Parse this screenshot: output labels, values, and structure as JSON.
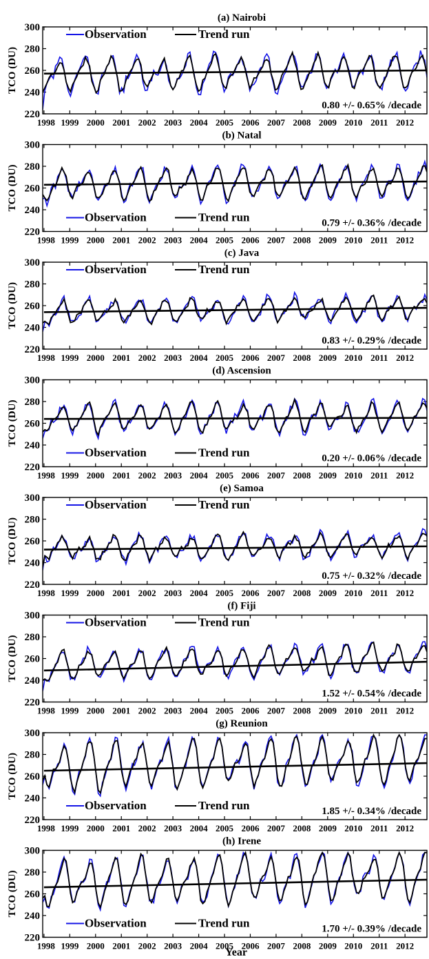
{
  "figure": {
    "ylabel": "TCO (DU)",
    "xlabel": "Year",
    "legend": {
      "observation": "Observation",
      "trend": "Trend run"
    },
    "colors": {
      "observation": "#1414e6",
      "trend": "#000000",
      "axis": "#000000"
    }
  },
  "chart_data": [
    {
      "type": "line",
      "title": "(a) Nairobi",
      "ylabel": "TCO (DU)",
      "ylim": [
        220,
        300
      ],
      "yticks": [
        220,
        240,
        260,
        280,
        300
      ],
      "xticks": [
        "1998",
        "1999",
        "2000",
        "2001",
        "2002",
        "2003",
        "2004",
        "2005",
        "2006",
        "2007",
        "2008",
        "2009",
        "2010",
        "2011",
        "2012"
      ],
      "legend_position": "top-left",
      "annotation": "0.80 +/- 0.65% /decade",
      "annotation_position": "bottom-right",
      "series": [
        {
          "name": "Observation",
          "mean": 256,
          "amplitude": 13,
          "phase": 0.62,
          "noise": 5,
          "start": 224
        },
        {
          "name": "Trend run",
          "mean": 256,
          "amplitude": 12,
          "phase": 0.62,
          "noise": 2,
          "start": 240
        }
      ],
      "trend_line": {
        "y_start": 257,
        "y_end": 260
      }
    },
    {
      "type": "line",
      "title": "(b) Natal",
      "ylabel": "TCO (DU)",
      "ylim": [
        220,
        300
      ],
      "yticks": [
        220,
        240,
        260,
        280,
        300
      ],
      "xticks": [
        "1998",
        "1999",
        "2000",
        "2001",
        "2002",
        "2003",
        "2004",
        "2005",
        "2006",
        "2007",
        "2008",
        "2009",
        "2010",
        "2011",
        "2012"
      ],
      "legend_position": "bottom-left",
      "annotation": "0.79 +/- 0.36% /decade",
      "annotation_position": "bottom-right",
      "series": [
        {
          "name": "Observation",
          "mean": 263,
          "amplitude": 12,
          "phase": 0.72,
          "noise": 4,
          "start": 250
        },
        {
          "name": "Trend run",
          "mean": 263,
          "amplitude": 11,
          "phase": 0.72,
          "noise": 2,
          "start": 254
        }
      ],
      "trend_line": {
        "y_start": 263,
        "y_end": 266
      }
    },
    {
      "type": "line",
      "title": "(c) Java",
      "ylabel": "TCO (DU)",
      "ylim": [
        220,
        300
      ],
      "yticks": [
        220,
        240,
        260,
        280,
        300
      ],
      "xticks": [
        "1998",
        "1999",
        "2000",
        "2001",
        "2002",
        "2003",
        "2004",
        "2005",
        "2006",
        "2007",
        "2008",
        "2009",
        "2010",
        "2011",
        "2012"
      ],
      "legend_position": "top-left",
      "annotation": "0.83 +/- 0.29% /decade",
      "annotation_position": "bottom-right",
      "series": [
        {
          "name": "Observation",
          "mean": 254,
          "amplitude": 9,
          "phase": 0.72,
          "noise": 4,
          "start": 236
        },
        {
          "name": "Trend run",
          "mean": 254,
          "amplitude": 8,
          "phase": 0.72,
          "noise": 2,
          "start": 244
        }
      ],
      "trend_line": {
        "y_start": 254,
        "y_end": 258
      }
    },
    {
      "type": "line",
      "title": "(d) Ascension",
      "ylabel": "TCO (DU)",
      "ylim": [
        220,
        300
      ],
      "yticks": [
        220,
        240,
        260,
        280,
        300
      ],
      "xticks": [
        "1998",
        "1999",
        "2000",
        "2001",
        "2002",
        "2003",
        "2004",
        "2005",
        "2006",
        "2007",
        "2008",
        "2009",
        "2010",
        "2011",
        "2012"
      ],
      "legend_position": "bottom-left",
      "annotation": "0.20 +/- 0.06% /decade",
      "annotation_position": "bottom-right",
      "series": [
        {
          "name": "Observation",
          "mean": 265,
          "amplitude": 11,
          "phase": 0.72,
          "noise": 4,
          "start": 246
        },
        {
          "name": "Trend run",
          "mean": 265,
          "amplitude": 10,
          "phase": 0.72,
          "noise": 2,
          "start": 252
        }
      ],
      "trend_line": {
        "y_start": 264,
        "y_end": 265
      }
    },
    {
      "type": "line",
      "title": "(e) Samoa",
      "ylabel": "TCO (DU)",
      "ylim": [
        220,
        300
      ],
      "yticks": [
        220,
        240,
        260,
        280,
        300
      ],
      "xticks": [
        "1998",
        "1999",
        "2000",
        "2001",
        "2002",
        "2003",
        "2004",
        "2005",
        "2006",
        "2007",
        "2008",
        "2009",
        "2010",
        "2011",
        "2012"
      ],
      "legend_position": "top-left",
      "annotation": "0.75 +/- 0.32% /decade",
      "annotation_position": "bottom-right",
      "series": [
        {
          "name": "Observation",
          "mean": 253,
          "amplitude": 9,
          "phase": 0.72,
          "noise": 4,
          "start": 233
        },
        {
          "name": "Trend run",
          "mean": 253,
          "amplitude": 8,
          "phase": 0.72,
          "noise": 2,
          "start": 236
        }
      ],
      "trend_line": {
        "y_start": 252,
        "y_end": 255
      }
    },
    {
      "type": "line",
      "title": "(f) Fiji",
      "ylabel": "TCO (DU)",
      "ylim": [
        220,
        300
      ],
      "yticks": [
        220,
        240,
        260,
        280,
        300
      ],
      "xticks": [
        "1998",
        "1999",
        "2000",
        "2001",
        "2002",
        "2003",
        "2004",
        "2005",
        "2006",
        "2007",
        "2008",
        "2009",
        "2010",
        "2011",
        "2012"
      ],
      "legend_position": "top-left",
      "annotation": "1.52 +/- 0.54% /decade",
      "annotation_position": "bottom-right",
      "series": [
        {
          "name": "Observation",
          "mean": 253,
          "amplitude": 11,
          "phase": 0.72,
          "noise": 4,
          "start": 230
        },
        {
          "name": "Trend run",
          "mean": 253,
          "amplitude": 10,
          "phase": 0.72,
          "noise": 2,
          "start": 240
        }
      ],
      "trend_line": {
        "y_start": 249,
        "y_end": 257
      }
    },
    {
      "type": "line",
      "title": "(g) Reunion",
      "ylabel": "TCO (DU)",
      "ylim": [
        220,
        300
      ],
      "yticks": [
        220,
        240,
        260,
        280,
        300
      ],
      "xticks": [
        "1998",
        "1999",
        "2000",
        "2001",
        "2002",
        "2003",
        "2004",
        "2005",
        "2006",
        "2007",
        "2008",
        "2009",
        "2010",
        "2011",
        "2012"
      ],
      "legend_position": "bottom-left",
      "annotation": "1.85 +/- 0.34% /decade",
      "annotation_position": "bottom-right",
      "series": [
        {
          "name": "Observation",
          "mean": 269,
          "amplitude": 18,
          "phase": 0.78,
          "noise": 4,
          "start": 252
        },
        {
          "name": "Trend run",
          "mean": 269,
          "amplitude": 17,
          "phase": 0.78,
          "noise": 2,
          "start": 256
        }
      ],
      "trend_line": {
        "y_start": 265,
        "y_end": 272
      }
    },
    {
      "type": "line",
      "title": "(h) Irene",
      "ylabel": "TCO (DU)",
      "xlabel": "Year",
      "ylim": [
        220,
        300
      ],
      "yticks": [
        220,
        240,
        260,
        280,
        300
      ],
      "xticks": [
        "1998",
        "1999",
        "2000",
        "2001",
        "2002",
        "2003",
        "2004",
        "2005",
        "2006",
        "2007",
        "2008",
        "2009",
        "2010",
        "2011",
        "2012"
      ],
      "legend_position": "bottom-left",
      "annotation": "1.70 +/- 0.39% /decade",
      "annotation_position": "bottom-right",
      "series": [
        {
          "name": "Observation",
          "mean": 270,
          "amplitude": 18,
          "phase": 0.78,
          "noise": 4,
          "start": 252
        },
        {
          "name": "Trend run",
          "mean": 270,
          "amplitude": 17,
          "phase": 0.78,
          "noise": 2,
          "start": 256
        }
      ],
      "trend_line": {
        "y_start": 266,
        "y_end": 273
      }
    }
  ]
}
